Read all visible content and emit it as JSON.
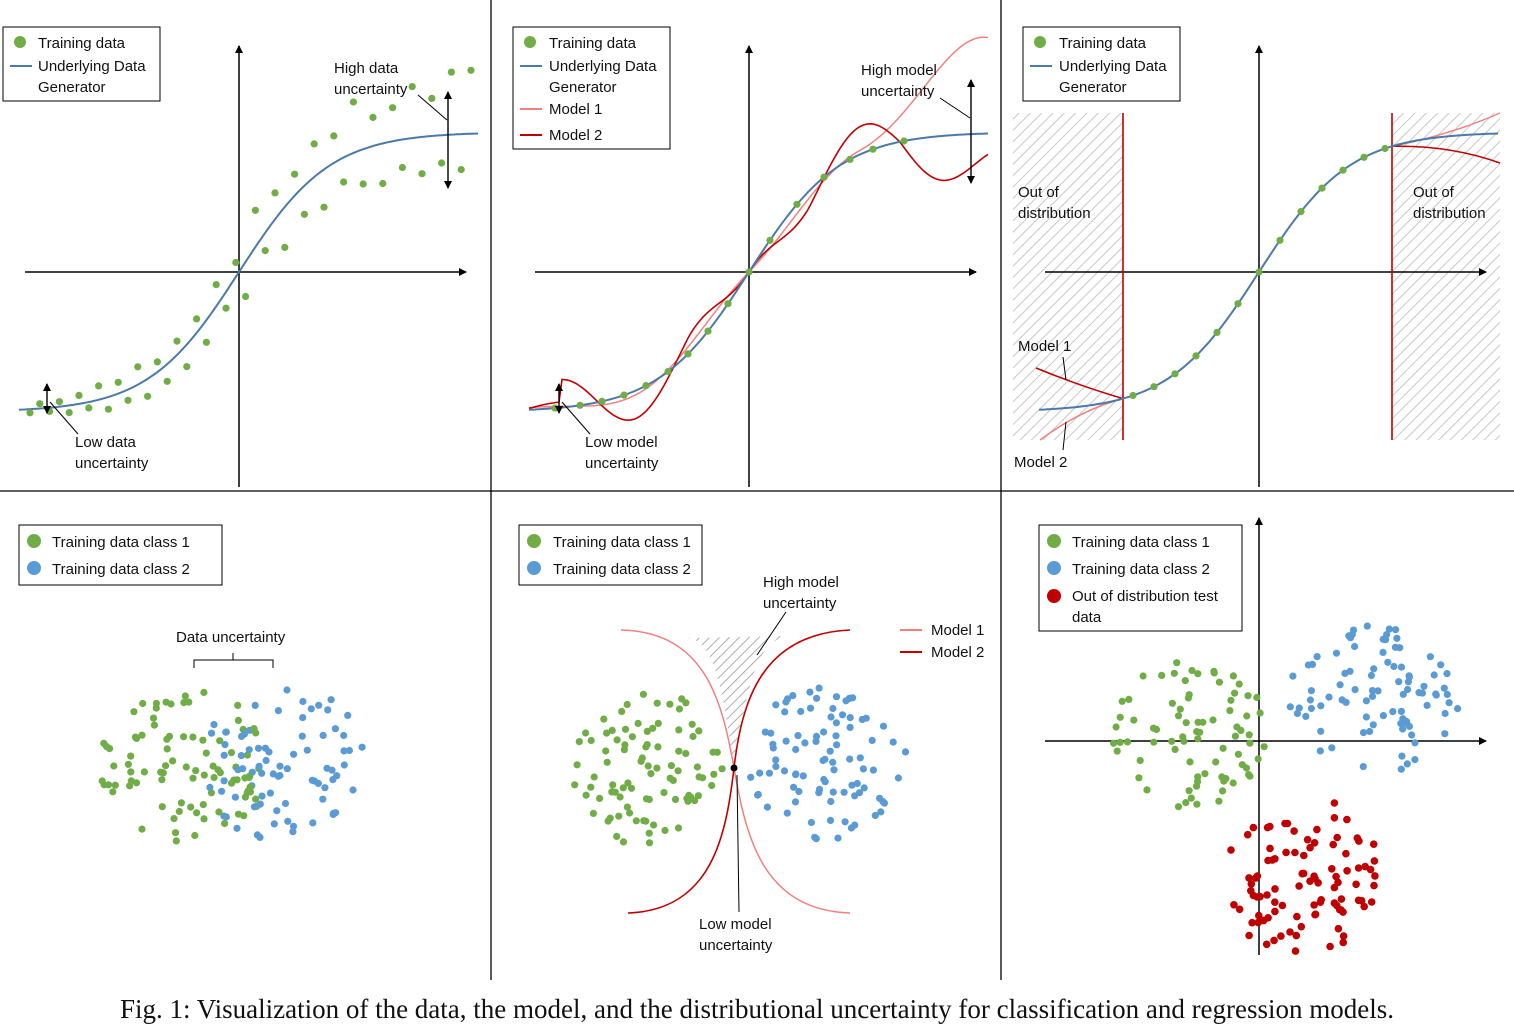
{
  "colors": {
    "class1": "#70ad47",
    "class2": "#5b9bd5",
    "ood": "#c00000",
    "generator": "#4a7aaa",
    "model1": "#f08080",
    "model2": "#c00000"
  },
  "panels": {
    "p1": {
      "legend": [
        "Training data",
        "Underlying Data",
        "Generator"
      ],
      "high_label": [
        "High data",
        "uncertainty"
      ],
      "low_label": [
        "Low data",
        "uncertainty"
      ]
    },
    "p2": {
      "legend": [
        "Training data",
        "Underlying Data",
        "Generator",
        "Model 1",
        "Model 2"
      ],
      "high_label": [
        "High model",
        "uncertainty"
      ],
      "low_label": [
        "Low model",
        "uncertainty"
      ]
    },
    "p3": {
      "legend": [
        "Training data",
        "Underlying Data",
        "Generator"
      ],
      "ood_left": [
        "Out of",
        "distribution"
      ],
      "ood_right": [
        "Out of",
        "distribution"
      ],
      "model1": "Model 1",
      "model2": "Model 2"
    },
    "p4": {
      "legend": [
        "Training data class 1",
        "Training data class 2"
      ],
      "data_uncertainty": "Data uncertainty"
    },
    "p5": {
      "legend": [
        "Training data class 1",
        "Training data class 2"
      ],
      "high_label": [
        "High model",
        "uncertainty"
      ],
      "low_label": [
        "Low model",
        "uncertainty"
      ],
      "model_legend": [
        "Model 1",
        "Model 2"
      ]
    },
    "p6": {
      "legend": [
        "Training data class 1",
        "Training data class 2",
        "Out of distribution test",
        "data"
      ]
    }
  },
  "caption": "Fig. 1: Visualization of the data, the model, and the distributional uncertainty for classification and regression models."
}
